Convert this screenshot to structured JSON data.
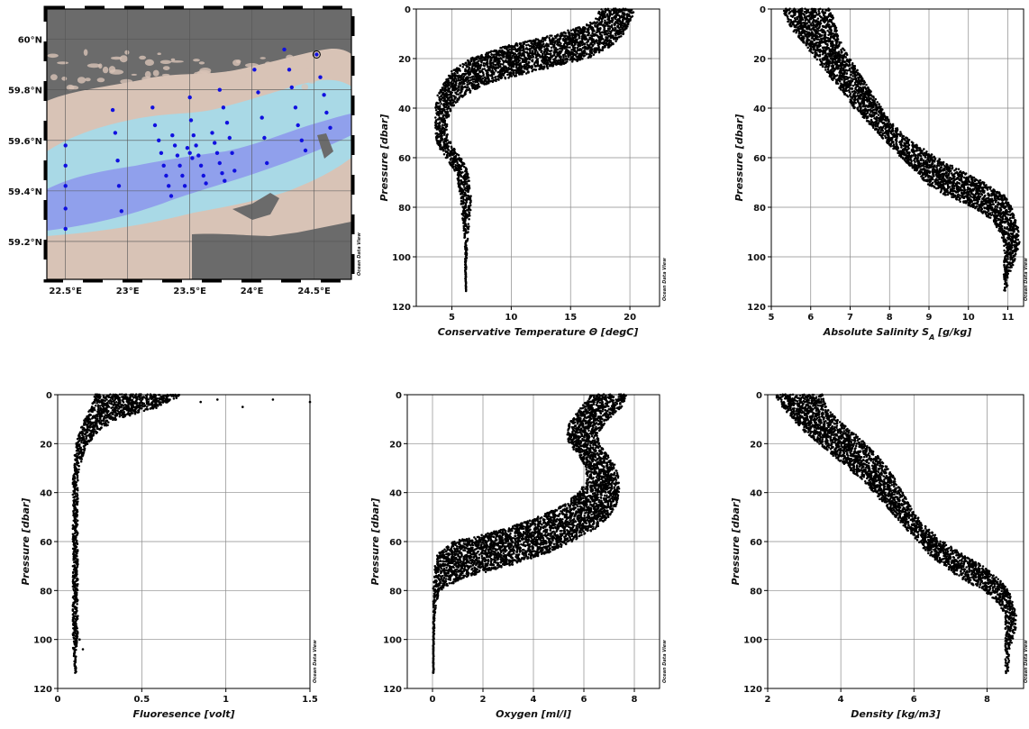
{
  "watermark": "Ocean Data View",
  "map": {
    "lon_ticks": [
      "22.5°E",
      "23°E",
      "23.5°E",
      "24°E",
      "24.5°E"
    ],
    "lat_ticks": [
      "60°N",
      "59.8°N",
      "59.6°N",
      "59.4°N",
      "59.2°N"
    ],
    "lon_range": [
      22.35,
      24.8
    ],
    "lat_range": [
      59.05,
      60.12
    ],
    "colors": {
      "land": "#6b6b6b",
      "shallow": "#d8c3b6",
      "mid": "#a9d9e6",
      "deep": "#8c95ec",
      "station": "#1010e0"
    },
    "stations": [
      [
        22.5,
        59.25
      ],
      [
        22.5,
        59.33
      ],
      [
        22.5,
        59.42
      ],
      [
        22.5,
        59.5
      ],
      [
        22.5,
        59.58
      ],
      [
        22.95,
        59.32
      ],
      [
        22.93,
        59.42
      ],
      [
        22.92,
        59.52
      ],
      [
        22.9,
        59.63
      ],
      [
        22.88,
        59.72
      ],
      [
        23.2,
        59.73
      ],
      [
        23.22,
        59.66
      ],
      [
        23.25,
        59.6
      ],
      [
        23.27,
        59.55
      ],
      [
        23.29,
        59.5
      ],
      [
        23.31,
        59.46
      ],
      [
        23.33,
        59.42
      ],
      [
        23.35,
        59.38
      ],
      [
        23.36,
        59.62
      ],
      [
        23.38,
        59.58
      ],
      [
        23.4,
        59.54
      ],
      [
        23.42,
        59.5
      ],
      [
        23.44,
        59.46
      ],
      [
        23.46,
        59.42
      ],
      [
        23.48,
        59.57
      ],
      [
        23.5,
        59.55
      ],
      [
        23.52,
        59.53
      ],
      [
        23.5,
        59.77
      ],
      [
        23.51,
        59.68
      ],
      [
        23.53,
        59.62
      ],
      [
        23.55,
        59.58
      ],
      [
        23.57,
        59.54
      ],
      [
        23.59,
        59.5
      ],
      [
        23.61,
        59.46
      ],
      [
        23.63,
        59.43
      ],
      [
        23.68,
        59.63
      ],
      [
        23.7,
        59.59
      ],
      [
        23.72,
        59.55
      ],
      [
        23.74,
        59.51
      ],
      [
        23.76,
        59.47
      ],
      [
        23.78,
        59.44
      ],
      [
        23.74,
        59.8
      ],
      [
        23.77,
        59.73
      ],
      [
        23.8,
        59.67
      ],
      [
        23.82,
        59.61
      ],
      [
        23.84,
        59.55
      ],
      [
        23.86,
        59.48
      ],
      [
        24.02,
        59.88
      ],
      [
        24.05,
        59.79
      ],
      [
        24.08,
        59.69
      ],
      [
        24.1,
        59.61
      ],
      [
        24.12,
        59.51
      ],
      [
        24.26,
        59.96
      ],
      [
        24.3,
        59.88
      ],
      [
        24.32,
        59.81
      ],
      [
        24.35,
        59.73
      ],
      [
        24.37,
        59.66
      ],
      [
        24.4,
        59.6
      ],
      [
        24.43,
        59.56
      ],
      [
        24.52,
        59.94
      ],
      [
        24.55,
        59.85
      ],
      [
        24.58,
        59.78
      ],
      [
        24.6,
        59.71
      ],
      [
        24.63,
        59.65
      ]
    ],
    "highlight_station": [
      24.52,
      59.94
    ]
  },
  "chart_data": [
    {
      "type": "scatter",
      "title": "",
      "xlabel": "Conservative Temperature Θ [degC]",
      "ylabel": "Pressure [dbar]",
      "xlim": [
        2,
        22.5
      ],
      "ylim": [
        0,
        120
      ],
      "y_inverted": true,
      "x_ticks": [
        5,
        10,
        15,
        20
      ],
      "y_ticks": [
        0,
        20,
        40,
        60,
        80,
        100,
        120
      ],
      "profile": {
        "pressure": [
          0,
          5,
          10,
          15,
          20,
          25,
          30,
          35,
          40,
          45,
          50,
          55,
          60,
          65,
          70,
          75,
          80,
          85,
          90,
          95,
          100,
          105,
          110,
          114
        ],
        "x_low": [
          17.5,
          17.0,
          14.0,
          9.5,
          6.5,
          5.0,
          4.3,
          3.8,
          3.6,
          3.6,
          3.6,
          3.8,
          4.5,
          5.2,
          5.5,
          5.7,
          5.8,
          5.9,
          6.0,
          6.1,
          6.1,
          6.1,
          6.1,
          6.2
        ],
        "x_high": [
          20.5,
          20.0,
          19.5,
          18.5,
          16.5,
          12.0,
          8.0,
          6.0,
          5.0,
          4.6,
          4.6,
          5.0,
          5.8,
          6.3,
          6.5,
          6.6,
          6.6,
          6.5,
          6.4,
          6.3,
          6.3,
          6.2,
          6.2,
          6.2
        ]
      }
    },
    {
      "type": "scatter",
      "title": "",
      "xlabel": "Absolute Salinity S",
      "xlabel_subscript": "A",
      "xlabel_unit": " [g/kg]",
      "ylabel": "Pressure [dbar]",
      "xlim": [
        5,
        11.4
      ],
      "ylim": [
        0,
        120
      ],
      "y_inverted": true,
      "x_ticks": [
        5,
        6,
        7,
        8,
        9,
        10,
        11
      ],
      "y_ticks": [
        0,
        20,
        40,
        60,
        80,
        100,
        120
      ],
      "profile": {
        "pressure": [
          0,
          5,
          10,
          15,
          20,
          25,
          30,
          35,
          40,
          45,
          50,
          55,
          60,
          65,
          70,
          75,
          80,
          85,
          90,
          95,
          100,
          105,
          110,
          114
        ],
        "x_low": [
          5.3,
          5.4,
          5.6,
          5.9,
          6.1,
          6.4,
          6.6,
          6.9,
          7.1,
          7.4,
          7.7,
          8.0,
          8.3,
          8.6,
          8.9,
          9.4,
          10.1,
          10.6,
          10.8,
          10.9,
          10.9,
          10.9,
          10.9,
          10.9
        ],
        "x_high": [
          6.5,
          6.6,
          6.7,
          6.8,
          7.0,
          7.2,
          7.4,
          7.6,
          7.8,
          8.0,
          8.3,
          8.7,
          9.2,
          9.8,
          10.4,
          10.9,
          11.1,
          11.2,
          11.3,
          11.3,
          11.2,
          11.1,
          11.0,
          11.0
        ]
      }
    },
    {
      "type": "scatter",
      "title": "",
      "xlabel": "Fluoresence [volt]",
      "ylabel": "Pressure [dbar]",
      "xlim": [
        0,
        1.5
      ],
      "ylim": [
        0,
        120
      ],
      "y_inverted": true,
      "x_ticks": [
        0,
        0.5,
        1,
        1.5
      ],
      "x_tick_labels": [
        "0",
        "0.5",
        "1",
        "1.5"
      ],
      "y_ticks": [
        0,
        20,
        40,
        60,
        80,
        100,
        120
      ],
      "profile": {
        "pressure": [
          0,
          5,
          10,
          15,
          20,
          25,
          30,
          35,
          40,
          45,
          50,
          55,
          60,
          65,
          70,
          75,
          80,
          85,
          90,
          95,
          100,
          105,
          110,
          114
        ],
        "x_low": [
          0.22,
          0.2,
          0.16,
          0.13,
          0.11,
          0.1,
          0.1,
          0.09,
          0.09,
          0.09,
          0.09,
          0.09,
          0.09,
          0.09,
          0.09,
          0.09,
          0.09,
          0.09,
          0.09,
          0.09,
          0.09,
          0.09,
          0.1,
          0.1
        ],
        "x_high": [
          0.75,
          0.6,
          0.35,
          0.24,
          0.18,
          0.15,
          0.13,
          0.12,
          0.12,
          0.12,
          0.12,
          0.12,
          0.12,
          0.12,
          0.12,
          0.12,
          0.12,
          0.12,
          0.12,
          0.12,
          0.12,
          0.11,
          0.11,
          0.11
        ]
      },
      "outliers": [
        [
          1.5,
          3
        ],
        [
          1.28,
          2
        ],
        [
          1.1,
          5
        ],
        [
          0.95,
          2
        ],
        [
          0.85,
          3
        ],
        [
          0.15,
          104
        ],
        [
          0.13,
          100
        ]
      ]
    },
    {
      "type": "scatter",
      "title": "",
      "xlabel": "Oxygen [ml/l]",
      "ylabel": "Pressure [dbar]",
      "xlim": [
        -1,
        9
      ],
      "ylim": [
        0,
        120
      ],
      "y_inverted": true,
      "x_ticks": [
        0,
        2,
        4,
        6,
        8
      ],
      "y_ticks": [
        0,
        20,
        40,
        60,
        80,
        100,
        120
      ],
      "profile": {
        "pressure": [
          0,
          5,
          10,
          15,
          20,
          25,
          30,
          35,
          40,
          45,
          50,
          55,
          60,
          65,
          70,
          75,
          80,
          85,
          90,
          95,
          100,
          105,
          110,
          114
        ],
        "x_low": [
          6.3,
          5.9,
          5.5,
          5.3,
          5.4,
          5.8,
          6.1,
          6.1,
          5.8,
          5.2,
          4.2,
          2.8,
          0.8,
          0.2,
          0.1,
          0.05,
          0.02,
          0.02,
          0.02,
          0.02,
          0.02,
          0.02,
          0.02,
          0.02
        ],
        "x_high": [
          7.7,
          7.5,
          7.0,
          6.6,
          6.6,
          7.0,
          7.3,
          7.4,
          7.4,
          7.3,
          7.0,
          6.4,
          5.5,
          4.5,
          3.0,
          1.2,
          0.3,
          0.15,
          0.1,
          0.08,
          0.06,
          0.05,
          0.05,
          0.05
        ]
      }
    },
    {
      "type": "scatter",
      "title": "",
      "xlabel": "Density [kg/m3]",
      "ylabel": "Pressure [dbar]",
      "xlim": [
        2,
        9
      ],
      "ylim": [
        0,
        120
      ],
      "y_inverted": true,
      "x_ticks": [
        2,
        4,
        6,
        8
      ],
      "y_ticks": [
        0,
        20,
        40,
        60,
        80,
        100,
        120
      ],
      "profile": {
        "pressure": [
          0,
          5,
          10,
          15,
          20,
          25,
          30,
          35,
          40,
          45,
          50,
          55,
          60,
          65,
          70,
          75,
          80,
          85,
          90,
          95,
          100,
          105,
          110,
          114
        ],
        "x_low": [
          2.2,
          2.4,
          2.7,
          3.0,
          3.4,
          3.8,
          4.2,
          4.6,
          4.9,
          5.2,
          5.5,
          5.8,
          6.1,
          6.4,
          6.8,
          7.3,
          7.9,
          8.3,
          8.5,
          8.5,
          8.5,
          8.5,
          8.5,
          8.5
        ],
        "x_high": [
          3.5,
          3.6,
          3.9,
          4.3,
          4.7,
          5.0,
          5.3,
          5.5,
          5.7,
          5.9,
          6.1,
          6.4,
          6.8,
          7.3,
          7.9,
          8.3,
          8.6,
          8.7,
          8.8,
          8.8,
          8.7,
          8.6,
          8.6,
          8.6
        ]
      }
    }
  ]
}
